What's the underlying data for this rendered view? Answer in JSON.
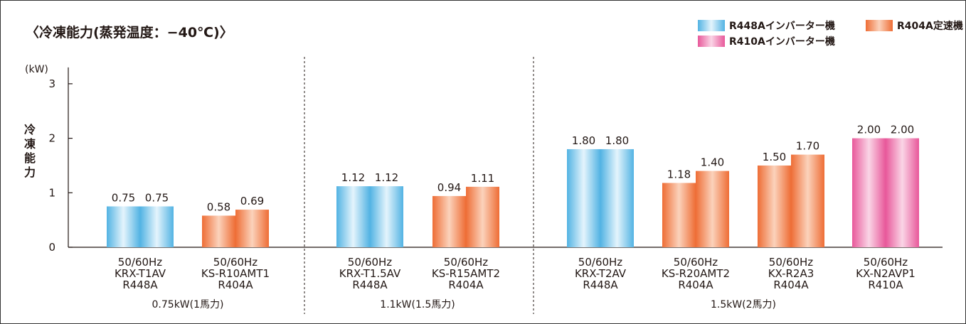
{
  "chart_data": {
    "type": "bar",
    "title": "〈冷凍能力(蒸発温度：−40℃)〉",
    "ylabel": "冷凍能力",
    "yunit": "(kW)",
    "ylim": [
      0,
      3.3
    ],
    "yticks": [
      "0",
      "1",
      "2",
      "3"
    ],
    "grid": false,
    "legend_position": "top-right",
    "legend": [
      {
        "key": "R448A",
        "label": "R448Aインバーター機"
      },
      {
        "key": "R404A",
        "label": "R404A定速機"
      },
      {
        "key": "R410A",
        "label": "R410Aインバーター機"
      }
    ],
    "colors": {
      "R448A": {
        "base": "#52b3e3",
        "light": "#e4f4fc"
      },
      "R404A": {
        "base": "#ee6d35",
        "light": "#fbd2bb"
      },
      "R410A": {
        "base": "#e8589a",
        "light": "#fad5e6"
      }
    },
    "groups": [
      {
        "label": "0.75kW(1馬力)",
        "models": [
          {
            "freq": "50/60Hz",
            "name": "KRX-T1AV",
            "refrigerant": "R448A",
            "values": [
              0.75,
              0.75
            ],
            "value_labels": [
              "0.75",
              "0.75"
            ]
          },
          {
            "freq": "50/60Hz",
            "name": "KS-R10AMT1",
            "refrigerant": "R404A",
            "values": [
              0.58,
              0.69
            ],
            "value_labels": [
              "0.58",
              "0.69"
            ]
          }
        ]
      },
      {
        "label": "1.1kW(1.5馬力)",
        "models": [
          {
            "freq": "50/60Hz",
            "name": "KRX-T1.5AV",
            "refrigerant": "R448A",
            "values": [
              1.12,
              1.12
            ],
            "value_labels": [
              "1.12",
              "1.12"
            ]
          },
          {
            "freq": "50/60Hz",
            "name": "KS-R15AMT2",
            "refrigerant": "R404A",
            "values": [
              0.94,
              1.11
            ],
            "value_labels": [
              "0.94",
              "1.11"
            ]
          }
        ]
      },
      {
        "label": "1.5kW(2馬力)",
        "models": [
          {
            "freq": "50/60Hz",
            "name": "KRX-T2AV",
            "refrigerant": "R448A",
            "values": [
              1.8,
              1.8
            ],
            "value_labels": [
              "1.80",
              "1.80"
            ]
          },
          {
            "freq": "50/60Hz",
            "name": "KS-R20AMT2",
            "refrigerant": "R404A",
            "values": [
              1.18,
              1.4
            ],
            "value_labels": [
              "1.18",
              "1.40"
            ]
          },
          {
            "freq": "50/60Hz",
            "name": "KX-R2A3",
            "refrigerant": "R404A",
            "values": [
              1.5,
              1.7
            ],
            "value_labels": [
              "1.50",
              "1.70"
            ]
          },
          {
            "freq": "50/60Hz",
            "name": "KX-N2AVP1",
            "refrigerant": "R410A",
            "values": [
              2.0,
              2.0
            ],
            "value_labels": [
              "2.00",
              "2.00"
            ]
          }
        ]
      }
    ]
  }
}
